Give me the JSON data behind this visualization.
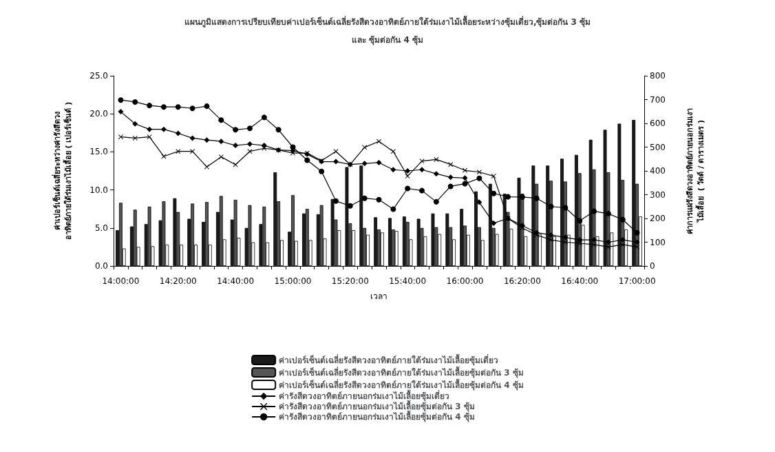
{
  "chart_data": {
    "type": "bar",
    "title": "แผนภูมิแสดงการเปรียบเทียบค่าเปอร์เซ็นต์เฉลี่ยรังสีดวงอาทิตย์ภายใต้ร่มเงาไม้เลื้อยระหว่างซุ้มเดี่ยว,ซุ้มต่อกัน 3 ซุ้ม\nและ ซุ้มต่อกัน 4 ซุ้ม",
    "xlabel": "เวลา",
    "ylabel": "ค่าเปอร์เซ็นต์เฉลี่ยระหว่างค่ารังสีดวง\nอาทิตย์ภายใต้ร่มเงาไม้เลื้อย ( เปอร์เซ็นต์ )",
    "y2label": "ค่าการแผ่รังสีดวงอาทิตย์ภายนอกร่มเงา\nไม้เลื้อย  ( วัตต์ / ตารางเมตร )",
    "categories": [
      "14:00:00",
      null,
      null,
      null,
      "14:20:00",
      null,
      null,
      null,
      "14:40:00",
      null,
      null,
      null,
      "15:00:00",
      null,
      null,
      null,
      "15:20:00",
      null,
      null,
      null,
      "15:40:00",
      null,
      null,
      null,
      "16:00:00",
      null,
      null,
      null,
      "16:20:00",
      null,
      null,
      null,
      "16:40:00",
      null,
      null,
      null,
      "17:00:00"
    ],
    "series": [
      {
        "name": "ค่าเปอร์เซ็นต์เฉลี่ยรังสีดวงอาทิตย์ภายใต้ร่มเงาไม้เลื้อยซุ้มเดี่ยว",
        "color": "#1a1a1a",
        "values": [
          4.7,
          5.2,
          5.5,
          6.0,
          8.9,
          6.2,
          5.8,
          7.1,
          6.1,
          5.0,
          5.5,
          12.3,
          4.5,
          6.9,
          6.8,
          8.8,
          13.0,
          13.2,
          6.4,
          6.3,
          6.5,
          6.2,
          6.9,
          6.9,
          7.5,
          9.8,
          10.8,
          9.5,
          11.6,
          13.2,
          13.2,
          14.1,
          14.6,
          16.6,
          17.9,
          18.7,
          19.2
        ]
      },
      {
        "name": "ค่าเปอร์เซ็นต์เฉลี่ยรังสีดวงอาทิตย์ภายใต้ร่มเงาไม้เลื้อยซุ้มต่อกัน 3 ซุ้ม",
        "color": "#555555",
        "values": [
          8.3,
          7.4,
          7.8,
          8.5,
          7.1,
          8.2,
          8.4,
          9.2,
          8.7,
          8.0,
          7.8,
          8.5,
          9.3,
          7.5,
          8.0,
          6.1,
          5.6,
          5.0,
          4.8,
          4.8,
          5.8,
          5.0,
          5.1,
          5.1,
          5.3,
          5.1,
          5.0,
          7.1,
          9.5,
          10.8,
          11.2,
          11.1,
          12.2,
          12.7,
          12.3,
          11.3,
          10.8
        ]
      },
      {
        "name": "ค่าเปอร์เซ็นต์เฉลี่ยรังสีดวงอาทิตย์ภายใต้ร่มเงาไม้เลื้อยซุ้มต่อกัน 4 ซุ้ม",
        "color": "#ffffff",
        "values": [
          2.3,
          2.5,
          2.6,
          2.8,
          2.8,
          2.8,
          2.8,
          3.5,
          3.7,
          3.1,
          3.1,
          3.4,
          3.3,
          3.4,
          3.6,
          4.7,
          4.7,
          4.1,
          4.4,
          4.6,
          3.5,
          3.9,
          4.2,
          3.5,
          4.1,
          3.4,
          4.2,
          4.9,
          3.9,
          4.2,
          3.9,
          4.1,
          5.4,
          3.9,
          4.4,
          4.8,
          6.5
        ]
      },
      {
        "name": "ค่ารังสีดวงอาทิตย์ภายนอกร่มเงาไม้เลื้อยซุ้มเดี่ยว",
        "type": "line",
        "axis": "y2",
        "marker": "diamond",
        "color": "#000000",
        "values": [
          649,
          598,
          575,
          575,
          558,
          538,
          530,
          524,
          507,
          513,
          507,
          488,
          485,
          470,
          439,
          439,
          427,
          431,
          435,
          405,
          400,
          405,
          388,
          373,
          370,
          268,
          180,
          200,
          170,
          140,
          130,
          120,
          110,
          110,
          100,
          110,
          100
        ]
      },
      {
        "name": "ค่ารังสีดวงอาทิตย์ภายนอกร่มเงาไม้เลื้อยซุ้มต่อกัน 3 ซุ้ม",
        "type": "line",
        "axis": "y2",
        "marker": "cross",
        "color": "#000000",
        "values": [
          543,
          538,
          543,
          461,
          482,
          482,
          417,
          459,
          426,
          482,
          495,
          488,
          475,
          475,
          443,
          482,
          427,
          499,
          524,
          482,
          378,
          441,
          448,
          427,
          402,
          395,
          378,
          200,
          160,
          130,
          110,
          100,
          95,
          90,
          80,
          90,
          80
        ]
      },
      {
        "name": "ค่ารังสีดวงอาทิตย์ภายนอกร่มเงาไม้เลื้อยซุ้มต่อกัน 4 ซุ้ม",
        "type": "line",
        "axis": "y2",
        "marker": "circle",
        "color": "#000000",
        "values": [
          698,
          690,
          675,
          669,
          669,
          663,
          672,
          614,
          573,
          579,
          625,
          573,
          500,
          445,
          398,
          273,
          253,
          285,
          279,
          239,
          326,
          317,
          270,
          335,
          346,
          369,
          305,
          291,
          290,
          285,
          250,
          245,
          190,
          230,
          220,
          195,
          140
        ]
      }
    ],
    "ylim": [
      0,
      25
    ],
    "yticks": [
      {
        "value": 0,
        "label": "0.0"
      },
      {
        "value": 5,
        "label": "5.0"
      },
      {
        "value": 10,
        "label": "10.0"
      },
      {
        "value": 15,
        "label": "15.0"
      },
      {
        "value": 20,
        "label": "20.0"
      },
      {
        "value": 25,
        "label": "25.0"
      }
    ],
    "y2lim": [
      0,
      800
    ],
    "y2ticks": [
      0,
      100,
      200,
      300,
      400,
      500,
      600,
      700,
      800
    ],
    "grid": false,
    "legend": "bottom"
  }
}
